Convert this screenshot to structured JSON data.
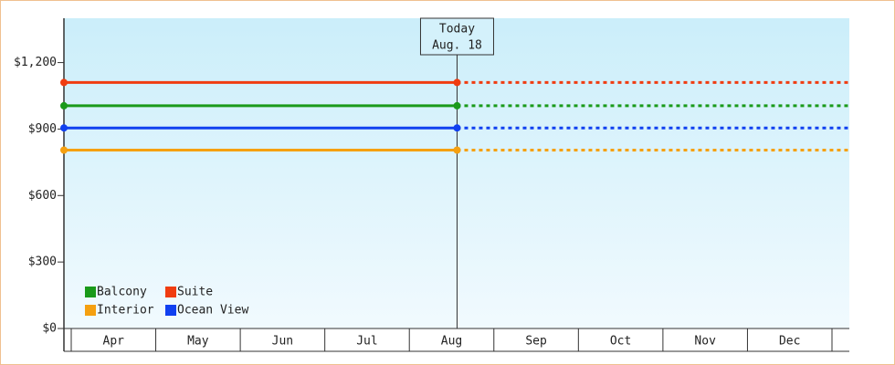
{
  "chart_data": {
    "type": "price-line",
    "categories": [
      "Apr",
      "May",
      "Jun",
      "Jul",
      "Aug",
      "Sep",
      "Oct",
      "Nov",
      "Dec"
    ],
    "today_label": "Today",
    "today_date": "Aug. 18",
    "series": [
      {
        "name": "Balcony",
        "color": "#1a9a1a",
        "value": 1005
      },
      {
        "name": "Suite",
        "color": "#f03c10",
        "value": 1110
      },
      {
        "name": "Interior",
        "color": "#f5a010",
        "value": 805
      },
      {
        "name": "Ocean View",
        "color": "#1040f0",
        "value": 905
      }
    ],
    "ylim": [
      0,
      1400
    ],
    "yticks": [
      {
        "value": 0,
        "label": "$0"
      },
      {
        "value": 300,
        "label": "$300"
      },
      {
        "value": 600,
        "label": "$600"
      },
      {
        "value": 900,
        "label": "$900"
      },
      {
        "value": 1200,
        "label": "$1,200"
      }
    ]
  }
}
